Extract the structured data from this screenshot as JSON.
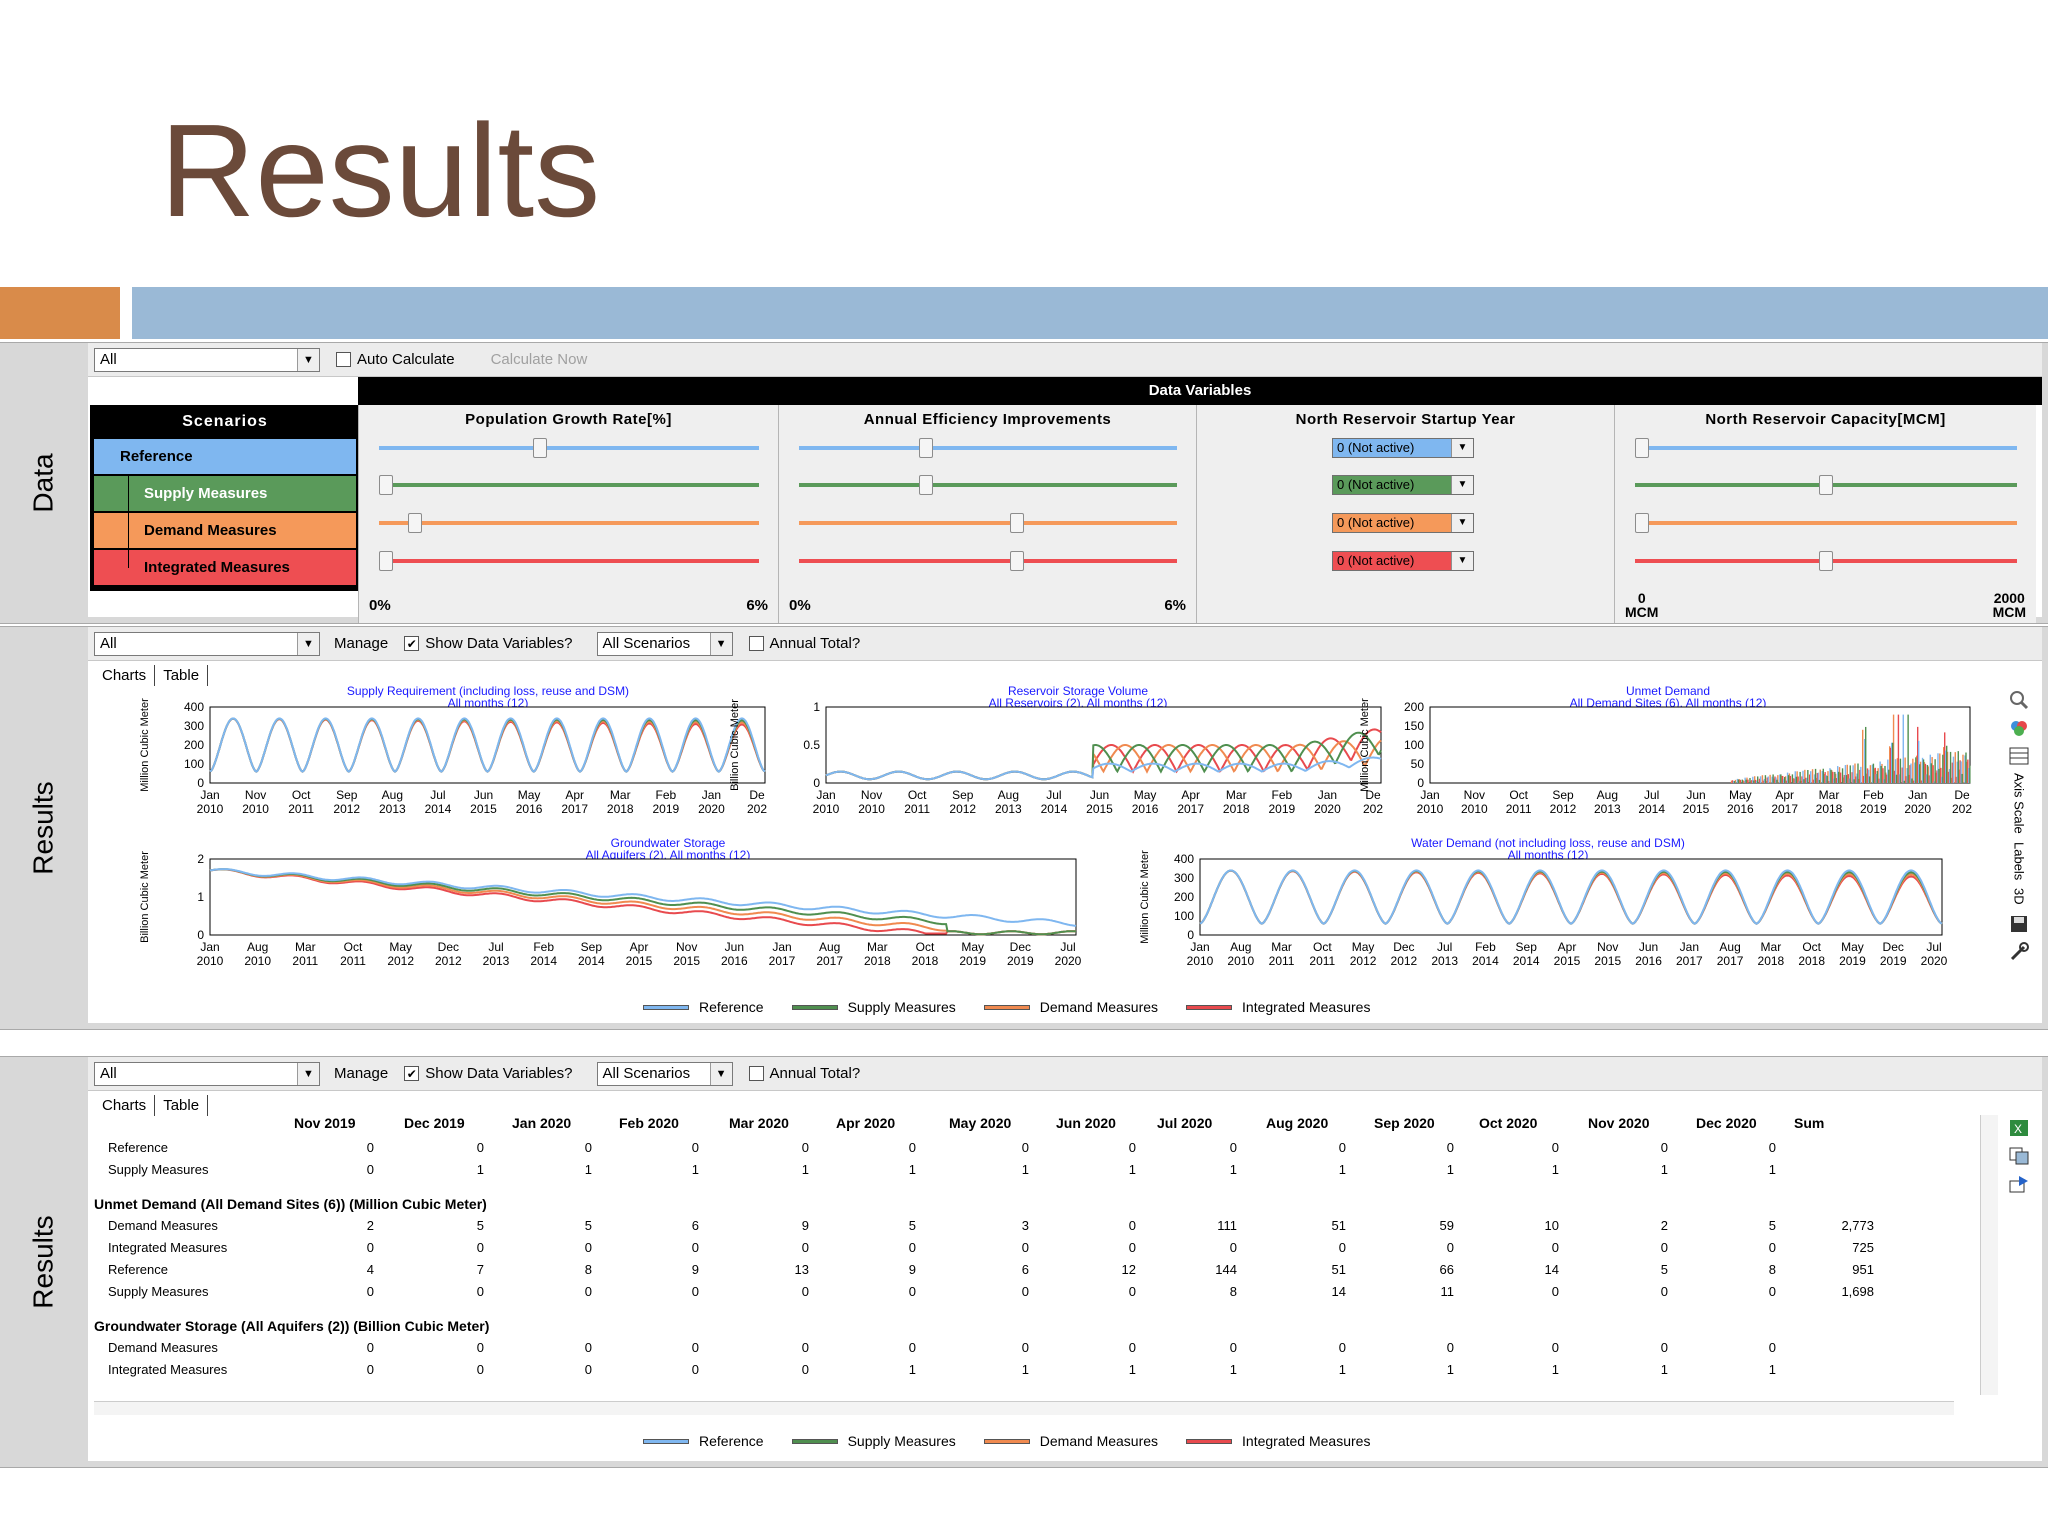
{
  "slide": {
    "title": "Results"
  },
  "panels": {
    "data_label": "Data",
    "results_label": "Results",
    "results2_label": "Results"
  },
  "data_panel": {
    "select_value": "All",
    "auto_calculate_label": "Auto Calculate",
    "calculate_now_label": "Calculate Now",
    "data_variables_label": "Data Variables",
    "scenarios_title": "Scenarios",
    "scenarios": [
      {
        "name": "Reference",
        "color": "#7fb7f0"
      },
      {
        "name": "Supply Measures",
        "color": "#5a9a5a"
      },
      {
        "name": "Demand Measures",
        "color": "#f5995a"
      },
      {
        "name": "Integrated Measures",
        "color": "#ee4e52"
      }
    ],
    "columns": [
      {
        "title": "Population Growth Rate[%]",
        "min_label": "0%",
        "max_label": "6%",
        "levels": [
          0.42,
          0.0,
          0.08,
          0.0
        ]
      },
      {
        "title": "Annual Efficiency Improvements",
        "min_label": "0%",
        "max_label": "6%",
        "levels": [
          0.33,
          0.33,
          0.58,
          0.58
        ]
      },
      {
        "title": "North Reservoir Startup Year",
        "options": [
          "0 (Not active)",
          "0 (Not active)",
          "0 (Not active)",
          "0 (Not active)"
        ]
      },
      {
        "title": "North Reservoir Capacity[MCM]",
        "min_label_top": "0",
        "min_label_bottom": "MCM",
        "max_label_top": "2000",
        "max_label_bottom": "MCM",
        "levels": [
          0.0,
          0.5,
          0.0,
          0.5
        ]
      }
    ]
  },
  "results_toolbar": {
    "select_value": "All",
    "manage_label": "Manage",
    "show_data_variables_label": "Show Data Variables?",
    "scenario_select_value": "All Scenarios",
    "annual_total_label": "Annual Total?",
    "tab_charts": "Charts",
    "tab_table": "Table"
  },
  "side_labels": {
    "axis_scale": "Axis Scale",
    "labels": "Labels",
    "three_d": "3D"
  },
  "legend": [
    {
      "name": "Reference",
      "color": "#7fb7f0"
    },
    {
      "name": "Supply Measures",
      "color": "#4f8f4f"
    },
    {
      "name": "Demand Measures",
      "color": "#f08a50"
    },
    {
      "name": "Integrated Measures",
      "color": "#e84a4e"
    }
  ],
  "charts": [
    {
      "title": "Supply Requirement (including loss, reuse and DSM)",
      "subtitle": "All months (12)",
      "ylabel": "Million Cubic Meter",
      "yticks": [
        "400",
        "300",
        "200",
        "100",
        "0"
      ],
      "xticks_top": [
        "Jan",
        "Nov",
        "Oct",
        "Sep",
        "Aug",
        "Jul",
        "Jun",
        "May",
        "Apr",
        "Mar",
        "Feb",
        "Jan",
        "De"
      ],
      "xticks_bottom": [
        "2010",
        "2010",
        "2011",
        "2012",
        "2013",
        "2014",
        "2015",
        "2016",
        "2017",
        "2018",
        "2019",
        "2020",
        "202"
      ]
    },
    {
      "title": "Reservoir Storage Volume",
      "subtitle": "All Reservoirs (2), All months (12)",
      "ylabel": "Billion Cubic Meter",
      "yticks": [
        "1",
        "0.5",
        "0"
      ],
      "xticks_top": [
        "Jan",
        "Nov",
        "Oct",
        "Sep",
        "Aug",
        "Jul",
        "Jun",
        "May",
        "Apr",
        "Mar",
        "Feb",
        "Jan",
        "De"
      ],
      "xticks_bottom": [
        "2010",
        "2010",
        "2011",
        "2012",
        "2013",
        "2014",
        "2015",
        "2016",
        "2017",
        "2018",
        "2019",
        "2020",
        "202"
      ]
    },
    {
      "title": "Unmet Demand",
      "subtitle": "All Demand Sites (6), All months (12)",
      "ylabel": "Million Cubic Meter",
      "yticks": [
        "200",
        "150",
        "100",
        "50",
        "0"
      ],
      "xticks_top": [
        "Jan",
        "Nov",
        "Oct",
        "Sep",
        "Aug",
        "Jul",
        "Jun",
        "May",
        "Apr",
        "Mar",
        "Feb",
        "Jan",
        "De"
      ],
      "xticks_bottom": [
        "2010",
        "2010",
        "2011",
        "2012",
        "2013",
        "2014",
        "2015",
        "2016",
        "2017",
        "2018",
        "2019",
        "2020",
        "202"
      ]
    },
    {
      "title": "Groundwater Storage",
      "subtitle": "All Aquifers (2), All months (12)",
      "ylabel": "Billion Cubic Meter",
      "yticks": [
        "2",
        "1",
        "0"
      ],
      "xticks_top": [
        "Jan",
        "Aug",
        "Mar",
        "Oct",
        "May",
        "Dec",
        "Jul",
        "Feb",
        "Sep",
        "Apr",
        "Nov",
        "Jun",
        "Jan",
        "Aug",
        "Mar",
        "Oct",
        "May",
        "Dec",
        "Jul"
      ],
      "xticks_bottom": [
        "2010",
        "2010",
        "2011",
        "2011",
        "2012",
        "2012",
        "2013",
        "2014",
        "2014",
        "2015",
        "2015",
        "2016",
        "2017",
        "2017",
        "2018",
        "2018",
        "2019",
        "2019",
        "2020"
      ]
    },
    {
      "title": "Water Demand (not including loss, reuse and DSM)",
      "subtitle": "All months (12)",
      "ylabel": "Million Cubic Meter",
      "yticks": [
        "400",
        "300",
        "200",
        "100",
        "0"
      ],
      "xticks_top": [
        "Jan",
        "Aug",
        "Mar",
        "Oct",
        "May",
        "Dec",
        "Jul",
        "Feb",
        "Sep",
        "Apr",
        "Nov",
        "Jun",
        "Jan",
        "Aug",
        "Mar",
        "Oct",
        "May",
        "Dec",
        "Jul"
      ],
      "xticks_bottom": [
        "2010",
        "2010",
        "2011",
        "2011",
        "2012",
        "2012",
        "2013",
        "2014",
        "2014",
        "2015",
        "2015",
        "2016",
        "2017",
        "2017",
        "2018",
        "2018",
        "2019",
        "2019",
        "2020"
      ]
    }
  ],
  "table": {
    "months": [
      "Nov 2019",
      "Dec 2019",
      "Jan 2020",
      "Feb 2020",
      "Mar 2020",
      "Apr 2020",
      "May 2020",
      "Jun 2020",
      "Jul 2020",
      "Aug 2020",
      "Sep 2020",
      "Oct 2020",
      "Nov 2020",
      "Dec 2020",
      "Sum"
    ],
    "rows": [
      {
        "type": "data",
        "label": "Reference",
        "values": [
          "0",
          "0",
          "0",
          "0",
          "0",
          "0",
          "0",
          "0",
          "0",
          "0",
          "0",
          "0",
          "0",
          "0",
          ""
        ]
      },
      {
        "type": "data",
        "label": "Supply Measures",
        "values": [
          "0",
          "1",
          "1",
          "1",
          "1",
          "1",
          "1",
          "1",
          "1",
          "1",
          "1",
          "1",
          "1",
          "1",
          ""
        ]
      },
      {
        "type": "group",
        "label": "Unmet Demand (All Demand Sites (6)) (Million Cubic Meter)"
      },
      {
        "type": "data",
        "label": "Demand Measures",
        "values": [
          "2",
          "5",
          "5",
          "6",
          "9",
          "5",
          "3",
          "0",
          "111",
          "51",
          "59",
          "10",
          "2",
          "5",
          "2,773"
        ]
      },
      {
        "type": "data",
        "label": "Integrated Measures",
        "values": [
          "0",
          "0",
          "0",
          "0",
          "0",
          "0",
          "0",
          "0",
          "0",
          "0",
          "0",
          "0",
          "0",
          "0",
          "725"
        ]
      },
      {
        "type": "data",
        "label": "Reference",
        "values": [
          "4",
          "7",
          "8",
          "9",
          "13",
          "9",
          "6",
          "12",
          "144",
          "51",
          "66",
          "14",
          "5",
          "8",
          "951"
        ]
      },
      {
        "type": "data",
        "label": "Supply Measures",
        "values": [
          "0",
          "0",
          "0",
          "0",
          "0",
          "0",
          "0",
          "0",
          "8",
          "14",
          "11",
          "0",
          "0",
          "0",
          "1,698"
        ]
      },
      {
        "type": "group",
        "label": "Groundwater Storage (All Aquifers (2)) (Billion Cubic Meter)"
      },
      {
        "type": "data",
        "label": "Demand Measures",
        "values": [
          "0",
          "0",
          "0",
          "0",
          "0",
          "0",
          "0",
          "0",
          "0",
          "0",
          "0",
          "0",
          "0",
          "0",
          ""
        ]
      },
      {
        "type": "data",
        "label": "Integrated Measures",
        "values": [
          "0",
          "0",
          "0",
          "0",
          "0",
          "1",
          "1",
          "1",
          "1",
          "1",
          "1",
          "1",
          "1",
          "1",
          ""
        ]
      }
    ]
  }
}
